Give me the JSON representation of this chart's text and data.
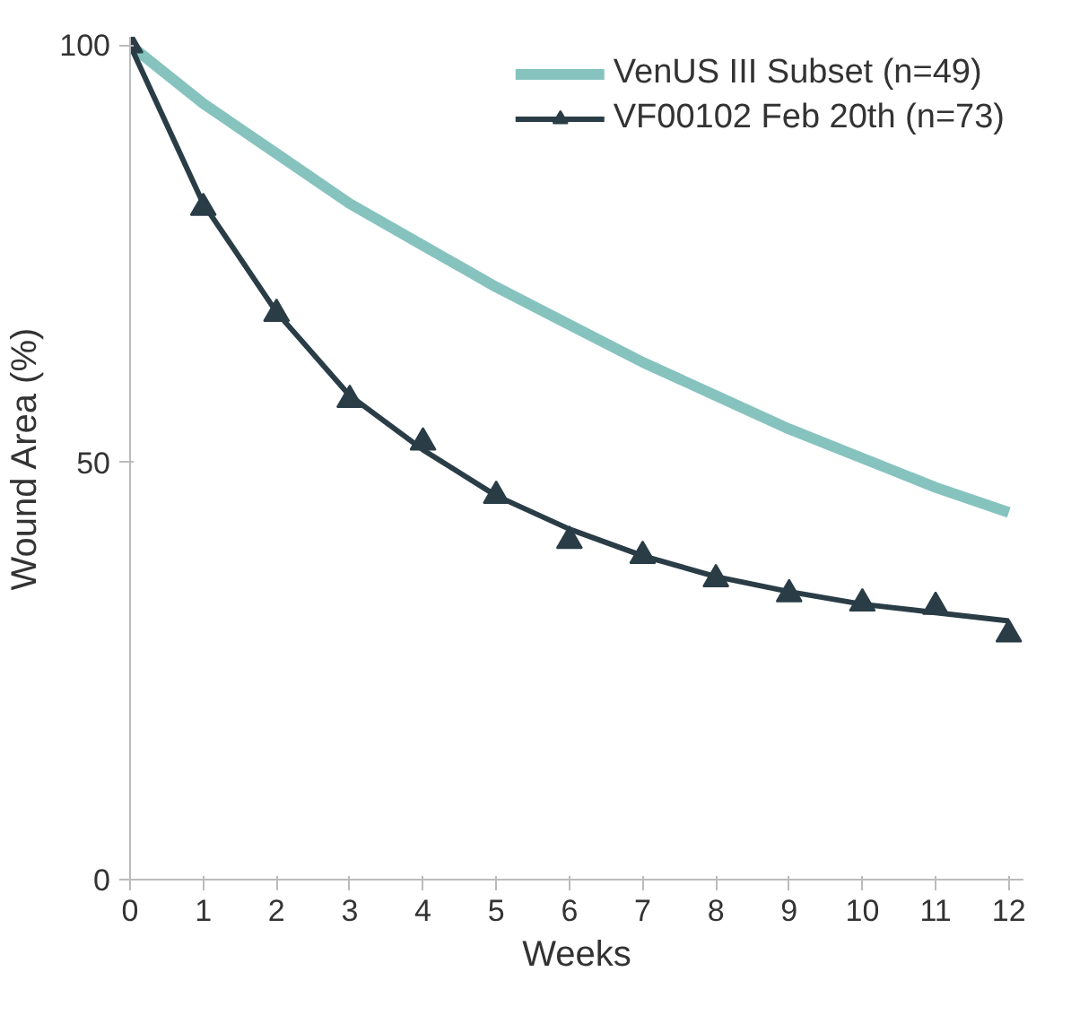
{
  "chart_data": {
    "type": "line",
    "xlabel": "Weeks",
    "ylabel": "Wound Area (%)",
    "xlim": [
      0,
      12.2
    ],
    "ylim": [
      0,
      101
    ],
    "xticks": [
      0,
      1,
      2,
      3,
      4,
      5,
      6,
      7,
      8,
      9,
      10,
      11,
      12
    ],
    "yticks": [
      0,
      50,
      100
    ],
    "grid": false,
    "legend": "top right",
    "line_style": "solid",
    "series": [
      {
        "name": "VenUS III Subset (n=49)",
        "color": "#86c3bf",
        "marker": "none",
        "x": [
          0,
          1,
          2,
          3,
          4,
          5,
          6,
          7,
          8,
          9,
          10,
          11,
          12
        ],
        "values": [
          100,
          93,
          87,
          81,
          76,
          71,
          66.5,
          62,
          58,
          54,
          50.5,
          47,
          44
        ]
      },
      {
        "color": "#2a3d47",
        "marker": "none",
        "x": [
          0,
          1,
          2,
          3,
          4,
          5,
          6,
          7,
          8,
          9,
          10,
          11,
          12
        ],
        "values": [
          100,
          81,
          68,
          58,
          51.5,
          46,
          42,
          38.8,
          36.3,
          34.5,
          33,
          32,
          31
        ]
      },
      {
        "name": "VF00102 Feb 20th (n=73)",
        "color": "#2a3d47",
        "type": "scatter",
        "marker": "triangle",
        "x": [
          0,
          1,
          2,
          3,
          4,
          5,
          6,
          7,
          8,
          9,
          10,
          11,
          12
        ],
        "values": [
          100,
          80.5,
          67.8,
          57.5,
          52.4,
          46,
          40.6,
          38.8,
          36,
          34.2,
          33.1,
          32.7,
          29.4
        ]
      }
    ]
  }
}
